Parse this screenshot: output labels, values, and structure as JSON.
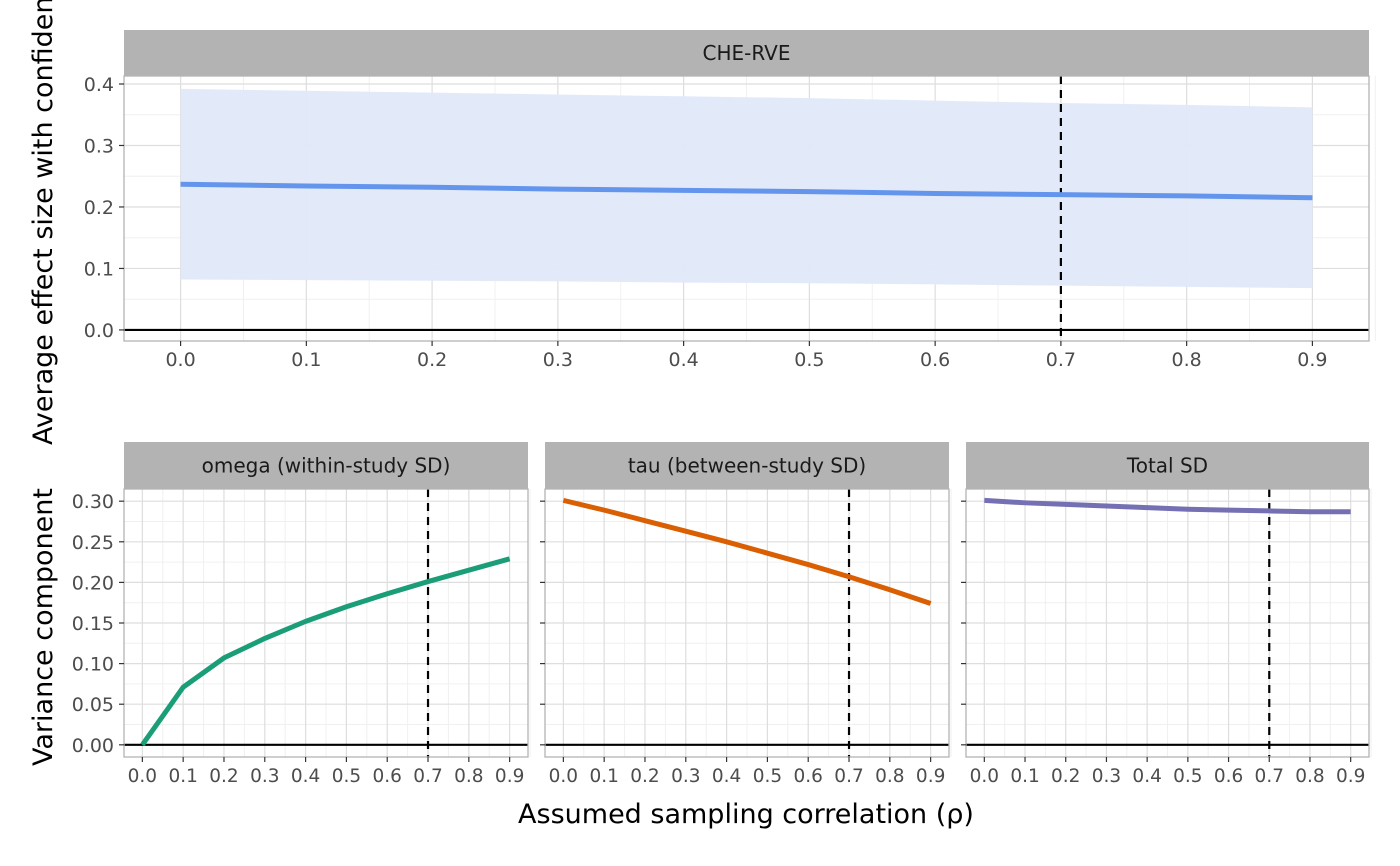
{
  "figure": {
    "x_axis_title": "Assumed sampling correlation (ρ)",
    "y_axis_title_top": "Average effect size with confidence",
    "y_axis_title_bottom": "Variance component"
  },
  "chart_data": [
    {
      "type": "line",
      "panel": "CHE-RVE",
      "title": "CHE-RVE",
      "x": [
        0.0,
        0.1,
        0.2,
        0.3,
        0.4,
        0.5,
        0.6,
        0.7,
        0.8,
        0.9
      ],
      "series": [
        {
          "values": [
            0.237,
            0.234,
            0.232,
            0.229,
            0.227,
            0.225,
            0.222,
            0.22,
            0.218,
            0.215
          ],
          "lower": [
            0.082,
            0.081,
            0.08,
            0.079,
            0.077,
            0.076,
            0.074,
            0.072,
            0.07,
            0.068
          ],
          "upper": [
            0.392,
            0.389,
            0.386,
            0.383,
            0.38,
            0.377,
            0.373,
            0.369,
            0.366,
            0.362
          ],
          "color": "#6495ED",
          "band_color": "#E0E9FA"
        }
      ],
      "x_ticks": [
        0.0,
        0.1,
        0.2,
        0.3,
        0.4,
        0.5,
        0.6,
        0.7,
        0.8,
        0.9
      ],
      "y_ticks": [
        0.0,
        0.1,
        0.2,
        0.3,
        0.4
      ],
      "xlim": [
        -0.045,
        0.945
      ],
      "ylim": [
        -0.018,
        0.413
      ],
      "reference_vline": 0.7,
      "reference_hline": 0.0,
      "grid": true
    },
    {
      "type": "line",
      "panel": "omega",
      "title": "omega (within-study SD)",
      "x": [
        0.0,
        0.1,
        0.2,
        0.3,
        0.4,
        0.5,
        0.6,
        0.7,
        0.8,
        0.9
      ],
      "series": [
        {
          "values": [
            0.0,
            0.071,
            0.107,
            0.131,
            0.152,
            0.17,
            0.186,
            0.201,
            0.215,
            0.229
          ],
          "color": "#1B9E77"
        }
      ],
      "x_ticks": [
        0.0,
        0.1,
        0.2,
        0.3,
        0.4,
        0.5,
        0.6,
        0.7,
        0.8,
        0.9
      ],
      "y_ticks": [
        0.0,
        0.05,
        0.1,
        0.15,
        0.2,
        0.25,
        0.3
      ],
      "xlim": [
        -0.045,
        0.945
      ],
      "ylim": [
        -0.015,
        0.315
      ],
      "reference_vline": 0.7,
      "reference_hline": 0.0,
      "grid": true
    },
    {
      "type": "line",
      "panel": "tau",
      "title": "tau (between-study SD)",
      "x": [
        0.0,
        0.1,
        0.2,
        0.3,
        0.4,
        0.5,
        0.6,
        0.7,
        0.8,
        0.9
      ],
      "series": [
        {
          "values": [
            0.301,
            0.289,
            0.276,
            0.263,
            0.25,
            0.236,
            0.222,
            0.207,
            0.191,
            0.174
          ],
          "color": "#D95F02"
        }
      ],
      "x_ticks": [
        0.0,
        0.1,
        0.2,
        0.3,
        0.4,
        0.5,
        0.6,
        0.7,
        0.8,
        0.9
      ],
      "y_ticks": [
        0.0,
        0.05,
        0.1,
        0.15,
        0.2,
        0.25,
        0.3
      ],
      "xlim": [
        -0.045,
        0.945
      ],
      "ylim": [
        -0.015,
        0.315
      ],
      "reference_vline": 0.7,
      "reference_hline": 0.0,
      "grid": true
    },
    {
      "type": "line",
      "panel": "total",
      "title": "Total SD",
      "x": [
        0.0,
        0.1,
        0.2,
        0.3,
        0.4,
        0.5,
        0.6,
        0.7,
        0.8,
        0.9
      ],
      "series": [
        {
          "values": [
            0.301,
            0.298,
            0.296,
            0.294,
            0.292,
            0.29,
            0.289,
            0.288,
            0.287,
            0.287
          ],
          "color": "#7570B3"
        }
      ],
      "x_ticks": [
        0.0,
        0.1,
        0.2,
        0.3,
        0.4,
        0.5,
        0.6,
        0.7,
        0.8,
        0.9
      ],
      "y_ticks": [
        0.0,
        0.05,
        0.1,
        0.15,
        0.2,
        0.25,
        0.3
      ],
      "xlim": [
        -0.045,
        0.945
      ],
      "ylim": [
        -0.015,
        0.315
      ],
      "reference_vline": 0.7,
      "reference_hline": 0.0,
      "grid": true
    }
  ]
}
